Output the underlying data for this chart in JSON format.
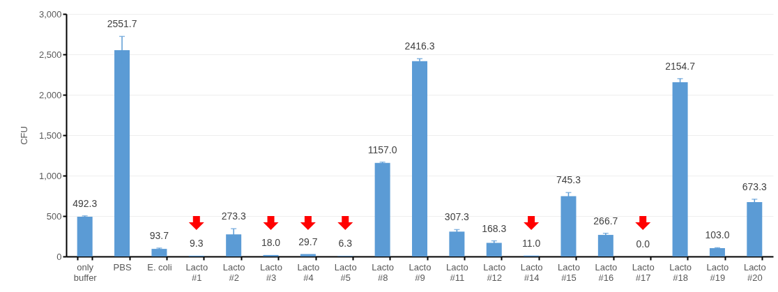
{
  "chart_data": {
    "type": "bar",
    "ylabel": "CFU",
    "categories": [
      "only buffer",
      "PBS",
      "E. coli",
      "Lacto #1",
      "Lacto #2",
      "Lacto #3",
      "Lacto #4",
      "Lacto #5",
      "Lacto #8",
      "Lacto #9",
      "Lacto #11",
      "Lacto #12",
      "Lacto #14",
      "Lacto #15",
      "Lacto #16",
      "Lacto #17",
      "Lacto #18",
      "Lacto #19",
      "Lacto #20"
    ],
    "values": [
      492.3,
      2551.7,
      93.7,
      9.3,
      273.3,
      18.0,
      29.7,
      6.3,
      1157.0,
      2416.3,
      307.3,
      168.3,
      11.0,
      745.3,
      266.7,
      0.0,
      2154.7,
      103.0,
      673.3
    ],
    "errors": [
      10,
      170,
      10,
      null,
      70,
      null,
      null,
      null,
      10,
      30,
      25,
      25,
      null,
      45,
      20,
      null,
      45,
      5,
      35
    ],
    "color": "#5b9bd5",
    "ylim": [
      0,
      3000
    ],
    "yticks": [
      {
        "value": 0,
        "label": "0"
      },
      {
        "value": 500,
        "label": "500"
      },
      {
        "value": 1000,
        "label": "1,000"
      },
      {
        "value": 1500,
        "label": "1,500"
      },
      {
        "value": 2000,
        "label": "2,000"
      },
      {
        "value": 2500,
        "label": "2,500"
      },
      {
        "value": 3000,
        "label": "3,000"
      }
    ],
    "value_labels": [
      "492.3",
      "2551.7",
      "93.7",
      "9.3",
      "273.3",
      "18.0",
      "29.7",
      "6.3",
      "1157.0",
      "2416.3",
      "307.3",
      "168.3",
      "11.0",
      "745.3",
      "266.7",
      "0.0",
      "2154.7",
      "103.0",
      "673.3"
    ],
    "grid": "y"
  }
}
